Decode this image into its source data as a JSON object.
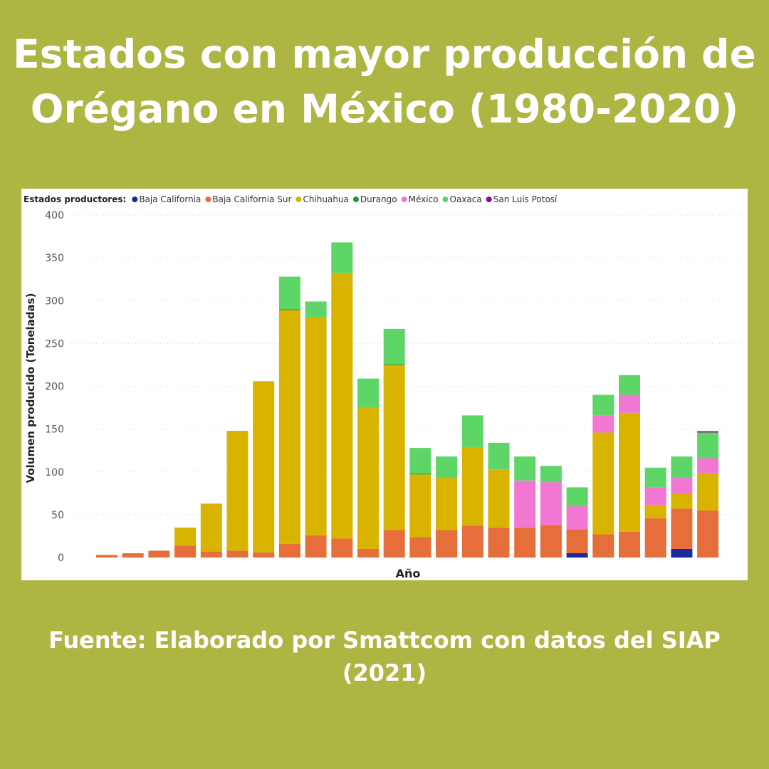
{
  "title": "Estados con mayor producción de\nOrégano en México (1980-2020)",
  "source": "Fuente: Elaborado por Smattcom con datos del SIAP\n(2021)",
  "background_color": "#adb543",
  "chart_data": {
    "type": "bar",
    "stacked": true,
    "legend_title": "Estados productores:",
    "legend_placement": "top-left",
    "xlabel": "Año",
    "ylabel": "Volumen producido (Toneladas)",
    "ylim": [
      0,
      400
    ],
    "yticks": [
      0,
      50,
      100,
      150,
      200,
      250,
      300,
      350,
      400
    ],
    "grid": "horizontal dotted",
    "bar_count": 24,
    "series": [
      {
        "name": "Baja California",
        "color": "#1a2a9e",
        "values": [
          0,
          0,
          0,
          0,
          0,
          0,
          0,
          0,
          0,
          0,
          0,
          0,
          0,
          0,
          0,
          0,
          0,
          0,
          5,
          0,
          0,
          0,
          10,
          0
        ]
      },
      {
        "name": "Baja California Sur",
        "color": "#e66e3a",
        "values": [
          3,
          5,
          8,
          14,
          7,
          8,
          6,
          16,
          26,
          22,
          10,
          32,
          24,
          32,
          37,
          35,
          35,
          38,
          28,
          27,
          30,
          46,
          47,
          55
        ]
      },
      {
        "name": "Chihuahua",
        "color": "#d8b300",
        "values": [
          0,
          0,
          0,
          21,
          56,
          140,
          200,
          273,
          255,
          310,
          165,
          193,
          73,
          61,
          92,
          68,
          0,
          0,
          0,
          119,
          139,
          15,
          17,
          43
        ]
      },
      {
        "name": "Durango",
        "color": "#1e9a3a",
        "values": [
          0,
          0,
          0,
          0,
          0,
          0,
          0,
          1,
          0,
          0,
          0,
          1,
          1,
          0,
          0,
          0,
          0,
          0,
          0,
          0,
          0,
          0,
          0,
          0
        ]
      },
      {
        "name": "México",
        "color": "#f277d2",
        "values": [
          0,
          0,
          0,
          0,
          0,
          0,
          0,
          0,
          0,
          0,
          0,
          0,
          0,
          0,
          0,
          0,
          55,
          50,
          27,
          20,
          21,
          21,
          19,
          18
        ]
      },
      {
        "name": "Oaxaca",
        "color": "#5ed667",
        "values": [
          0,
          0,
          0,
          0,
          0,
          0,
          0,
          38,
          18,
          36,
          34,
          41,
          30,
          25,
          37,
          31,
          28,
          19,
          22,
          24,
          23,
          23,
          25,
          30
        ]
      },
      {
        "name": "San Luis Potosí",
        "color": "#8b0a8b",
        "values": [
          0,
          0,
          0,
          0,
          0,
          0,
          0,
          0,
          0,
          0,
          0,
          0,
          0,
          0,
          0,
          0,
          0,
          0,
          0,
          0,
          0,
          0,
          0,
          1.5
        ]
      }
    ]
  }
}
